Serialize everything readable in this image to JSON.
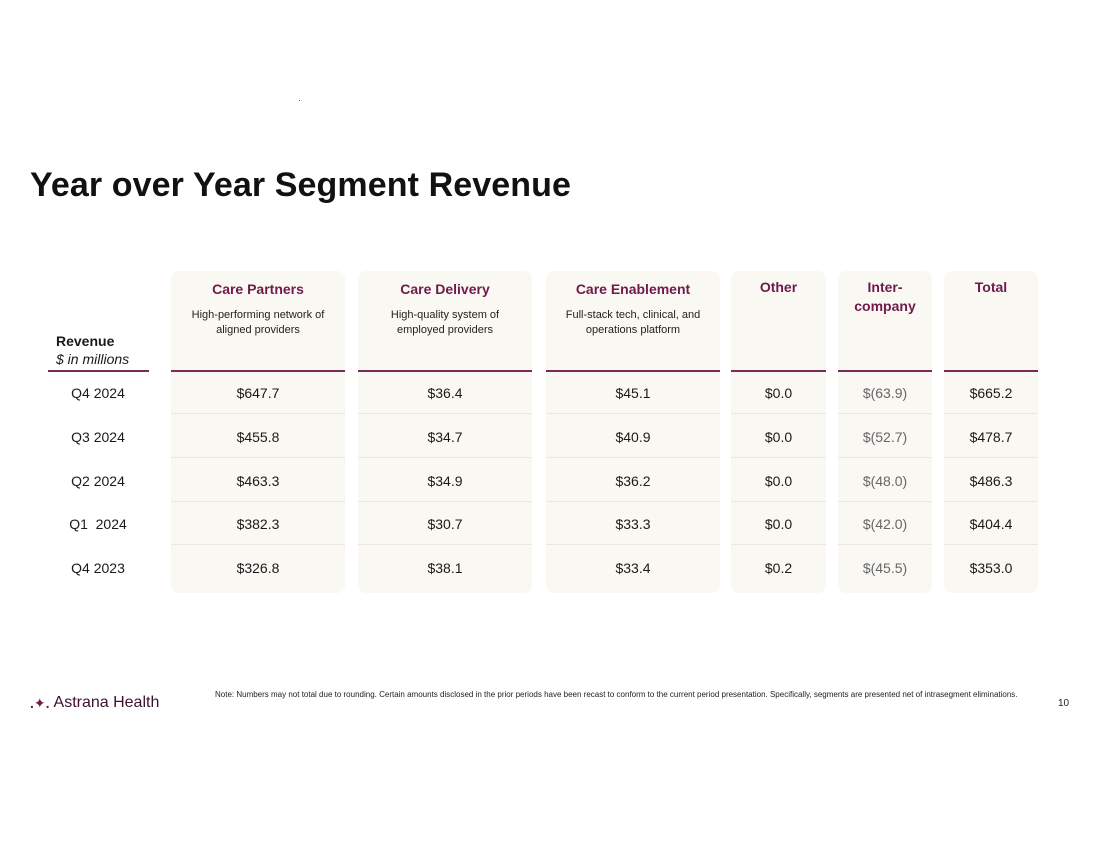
{
  "title": "Year over Year Segment Revenue",
  "row_header": {
    "main": "Revenue",
    "sub": "$ in millions"
  },
  "columns": [
    {
      "name": "Care Partners",
      "desc": "High-performing network of aligned providers"
    },
    {
      "name": "Care Delivery",
      "desc": "High-quality system of employed providers"
    },
    {
      "name": "Care Enablement",
      "desc": "Full-stack tech, clinical, and operations platform"
    },
    {
      "name": "Other",
      "desc": ""
    },
    {
      "name": "Inter-company",
      "desc": ""
    },
    {
      "name": "Total",
      "desc": ""
    }
  ],
  "rows": [
    {
      "label": "Q4 2024",
      "values": [
        "$647.7",
        "$36.4",
        "$45.1",
        "$0.0",
        "$(63.9)",
        "$665.2"
      ]
    },
    {
      "label": "Q3 2024",
      "values": [
        "$455.8",
        "$34.7",
        "$40.9",
        "$0.0",
        "$(52.7)",
        "$478.7"
      ]
    },
    {
      "label": "Q2 2024",
      "values": [
        "$463.3",
        "$34.9",
        "$36.2",
        "$0.0",
        "$(48.0)",
        "$486.3"
      ]
    },
    {
      "label": "Q1  2024",
      "values": [
        "$382.3",
        "$30.7",
        "$33.3",
        "$0.0",
        "$(42.0)",
        "$404.4"
      ]
    },
    {
      "label": "Q4 2023",
      "values": [
        "$326.8",
        "$38.1",
        "$33.4",
        "$0.2",
        "$(45.5)",
        "$353.0"
      ]
    }
  ],
  "logo": {
    "mark": ".✦.",
    "text": "Astrana Health"
  },
  "note": "Note: Numbers may not total due to rounding. Certain amounts disclosed in the prior periods have been recast to conform to the current period presentation. Specifically, segments are presented net of intrasegment eliminations.",
  "page_number": "10",
  "colors": {
    "accent": "#6e1a4b",
    "column_bg": "#faf8f3",
    "rule": "#7a2a58"
  }
}
